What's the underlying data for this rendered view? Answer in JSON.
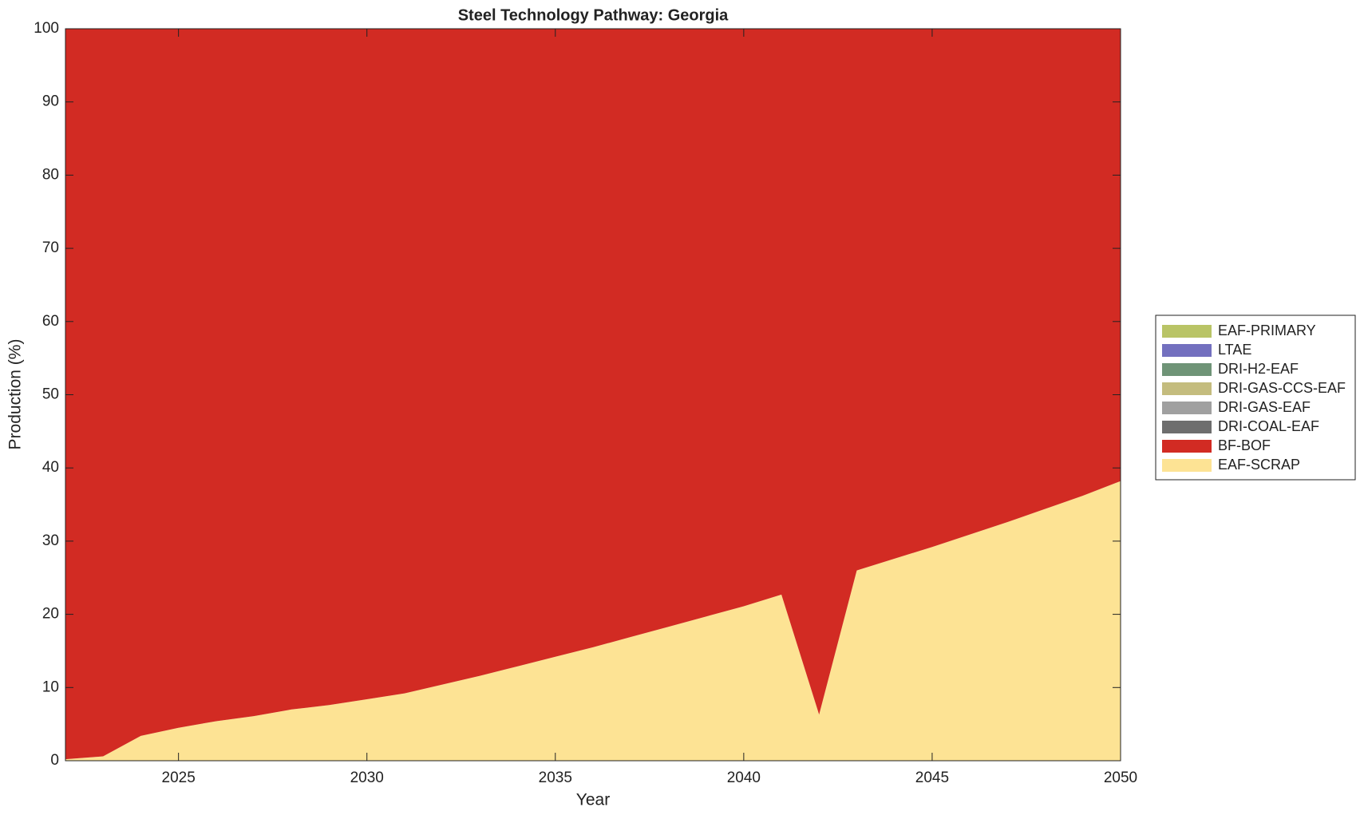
{
  "chart_data": {
    "type": "stacked_area",
    "title": "Steel Technology Pathway: Georgia",
    "xlabel": "Year",
    "ylabel": "Production (%)",
    "x": [
      2022,
      2023,
      2024,
      2025,
      2026,
      2027,
      2028,
      2029,
      2030,
      2031,
      2032,
      2033,
      2034,
      2035,
      2036,
      2037,
      2038,
      2039,
      2040,
      2041,
      2042,
      2043,
      2044,
      2045,
      2046,
      2047,
      2048,
      2049,
      2050
    ],
    "series": [
      {
        "name": "EAF-SCRAP",
        "color": "#fde394",
        "values": [
          0.2,
          0.6,
          3.4,
          4.5,
          5.4,
          6.1,
          7.0,
          7.6,
          8.4,
          9.2,
          10.4,
          11.6,
          12.9,
          14.2,
          15.5,
          16.9,
          18.3,
          19.7,
          21.1,
          22.7,
          6.3,
          26.0,
          27.6,
          29.2,
          30.9,
          32.6,
          34.4,
          36.2,
          38.2
        ]
      },
      {
        "name": "BF-BOF",
        "color": "#d22b23",
        "values": [
          99.8,
          99.4,
          96.6,
          95.5,
          94.6,
          93.9,
          93.0,
          92.4,
          91.6,
          90.8,
          89.6,
          88.4,
          87.1,
          85.8,
          84.5,
          83.1,
          81.7,
          80.3,
          78.9,
          77.3,
          93.7,
          74.0,
          72.4,
          70.8,
          69.1,
          67.4,
          65.6,
          63.8,
          61.8
        ]
      },
      {
        "name": "DRI-COAL-EAF",
        "color": "#6e6e6e",
        "values": [
          0,
          0,
          0,
          0,
          0,
          0,
          0,
          0,
          0,
          0,
          0,
          0,
          0,
          0,
          0,
          0,
          0,
          0,
          0,
          0,
          0,
          0,
          0,
          0,
          0,
          0,
          0,
          0,
          0
        ]
      },
      {
        "name": "DRI-GAS-EAF",
        "color": "#a0a0a0",
        "values": [
          0,
          0,
          0,
          0,
          0,
          0,
          0,
          0,
          0,
          0,
          0,
          0,
          0,
          0,
          0,
          0,
          0,
          0,
          0,
          0,
          0,
          0,
          0,
          0,
          0,
          0,
          0,
          0,
          0
        ]
      },
      {
        "name": "DRI-GAS-CCS-EAF",
        "color": "#c4bc7e",
        "values": [
          0,
          0,
          0,
          0,
          0,
          0,
          0,
          0,
          0,
          0,
          0,
          0,
          0,
          0,
          0,
          0,
          0,
          0,
          0,
          0,
          0,
          0,
          0,
          0,
          0,
          0,
          0,
          0,
          0
        ]
      },
      {
        "name": "DRI-H2-EAF",
        "color": "#6f9477",
        "values": [
          0,
          0,
          0,
          0,
          0,
          0,
          0,
          0,
          0,
          0,
          0,
          0,
          0,
          0,
          0,
          0,
          0,
          0,
          0,
          0,
          0,
          0,
          0,
          0,
          0,
          0,
          0,
          0,
          0
        ]
      },
      {
        "name": "LTAE",
        "color": "#7370bf",
        "values": [
          0,
          0,
          0,
          0,
          0,
          0,
          0,
          0,
          0,
          0,
          0,
          0,
          0,
          0,
          0,
          0,
          0,
          0,
          0,
          0,
          0,
          0,
          0,
          0,
          0,
          0,
          0,
          0,
          0
        ]
      },
      {
        "name": "EAF-PRIMARY",
        "color": "#b9c466",
        "values": [
          0,
          0,
          0,
          0,
          0,
          0,
          0,
          0,
          0,
          0,
          0,
          0,
          0,
          0,
          0,
          0,
          0,
          0,
          0,
          0,
          0,
          0,
          0,
          0,
          0,
          0,
          0,
          0,
          0
        ]
      }
    ],
    "xlim": [
      2022,
      2050
    ],
    "xticks": [
      2025,
      2030,
      2035,
      2040,
      2045,
      2050
    ],
    "ylim": [
      0,
      100
    ],
    "yticks": [
      0,
      10,
      20,
      30,
      40,
      50,
      60,
      70,
      80,
      90,
      100
    ],
    "grid": false,
    "legend": "right"
  }
}
